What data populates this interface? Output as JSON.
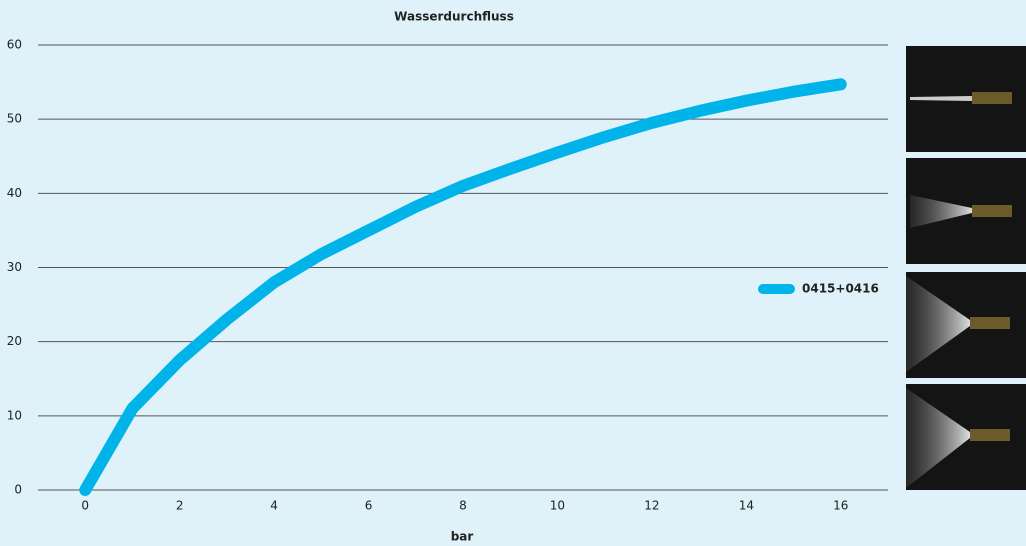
{
  "chart_data": {
    "type": "line",
    "title": "Wasserdurchfluss",
    "x_label": "bar",
    "x": [
      0,
      1,
      2,
      3,
      4,
      5,
      6,
      7,
      8,
      9,
      10,
      11,
      12,
      13,
      14,
      15,
      16
    ],
    "series": [
      {
        "name": "0415+0416",
        "color": "#00b4ea",
        "values": [
          0,
          11,
          17.5,
          23,
          28,
          31.8,
          35,
          38.2,
          41,
          43.3,
          45.5,
          47.6,
          49.5,
          51.1,
          52.5,
          53.7,
          54.7
        ]
      }
    ],
    "xlim": [
      -1,
      17
    ],
    "xticks": [
      0,
      2,
      4,
      6,
      8,
      10,
      12,
      14,
      16
    ],
    "ylim": [
      0,
      60
    ],
    "yticks": [
      0,
      10,
      20,
      30,
      40,
      50,
      60
    ],
    "grid": true,
    "legend": "right"
  }
}
